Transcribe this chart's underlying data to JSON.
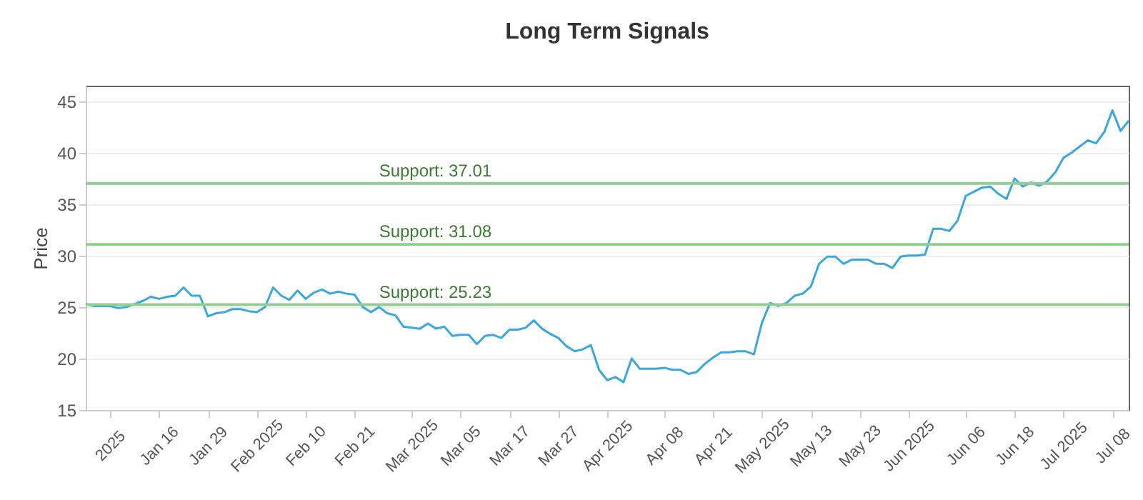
{
  "chart_data": {
    "type": "line",
    "title": "Long Term Signals",
    "ylabel": "Price",
    "categories": [
      null,
      null,
      null,
      "2025",
      null,
      null,
      null,
      null,
      null,
      "Jan 16",
      null,
      null,
      null,
      null,
      null,
      "Jan 29",
      null,
      null,
      null,
      null,
      null,
      "Feb 2025",
      null,
      null,
      null,
      null,
      null,
      "Feb 10",
      null,
      null,
      null,
      null,
      null,
      "Feb 21",
      null,
      null,
      null,
      null,
      null,
      null,
      "Mar 2025",
      null,
      null,
      null,
      null,
      null,
      "Mar 05",
      null,
      null,
      null,
      null,
      null,
      "Mar 17",
      null,
      null,
      null,
      null,
      null,
      "Mar 27",
      null,
      null,
      null,
      null,
      null,
      "Apr 2025",
      null,
      null,
      null,
      null,
      null,
      null,
      "Apr 08",
      null,
      null,
      null,
      null,
      null,
      "Apr 21",
      null,
      null,
      null,
      null,
      null,
      "May 2025",
      null,
      null,
      null,
      null,
      null,
      "May 13",
      null,
      null,
      null,
      null,
      null,
      "May 23",
      null,
      null,
      null,
      null,
      null,
      "Jun 2025",
      null,
      null,
      null,
      null,
      null,
      null,
      "Jun 06",
      null,
      null,
      null,
      null,
      null,
      "Jun 18",
      null,
      null,
      null,
      null,
      null,
      "Jul 2025",
      null,
      null,
      null,
      null,
      null,
      "Jul 08",
      null,
      null
    ],
    "series": [
      {
        "color": "#3aa8dc",
        "values": [
          25.3,
          25.1,
          25.1,
          25.1,
          24.9,
          25.0,
          25.3,
          25.6,
          26.0,
          25.8,
          26.0,
          26.1,
          26.9,
          26.1,
          26.1,
          24.1,
          24.4,
          24.5,
          24.8,
          24.8,
          24.6,
          24.5,
          25.0,
          26.9,
          26.1,
          25.7,
          26.6,
          25.8,
          26.4,
          26.7,
          26.3,
          26.5,
          26.3,
          26.2,
          25.0,
          24.5,
          25.0,
          24.4,
          24.2,
          23.1,
          23.0,
          22.9,
          23.4,
          22.9,
          23.1,
          22.2,
          22.3,
          22.3,
          21.4,
          22.2,
          22.3,
          22.0,
          22.8,
          22.8,
          23.0,
          23.7,
          22.9,
          22.4,
          22.0,
          21.2,
          20.7,
          20.9,
          21.3,
          18.9,
          17.9,
          18.2,
          17.7,
          20.0,
          19.0,
          19.0,
          19.0,
          19.1,
          18.9,
          18.9,
          18.5,
          18.7,
          19.5,
          20.1,
          20.6,
          20.6,
          20.7,
          20.7,
          20.4,
          23.5,
          25.4,
          25.1,
          25.4,
          26.1,
          26.3,
          27.0,
          29.2,
          29.9,
          29.9,
          29.2,
          29.6,
          29.6,
          29.6,
          29.2,
          29.2,
          28.8,
          29.9,
          30.0,
          30.0,
          30.1,
          32.6,
          32.6,
          32.4,
          33.4,
          35.8,
          36.2,
          36.6,
          36.7,
          36.0,
          35.5,
          37.5,
          36.7,
          37.1,
          36.8,
          37.2,
          38.1,
          39.5,
          40.0,
          40.6,
          41.2,
          40.9,
          42.0,
          44.1,
          42.1,
          43.1
        ]
      }
    ],
    "ylim": [
      15,
      46.5
    ],
    "yticks": [
      15,
      20,
      25,
      30,
      35,
      40,
      45
    ],
    "grid": "y",
    "ref_lines": [
      {
        "axis": "y",
        "value": 37.01,
        "label": "Support: 37.01",
        "color": "#8fcf8f"
      },
      {
        "axis": "y",
        "value": 31.08,
        "label": "Support: 31.08",
        "color": "#8fcf8f"
      },
      {
        "axis": "y",
        "value": 25.23,
        "label": "Support: 25.23",
        "color": "#8fcf8f"
      }
    ]
  }
}
